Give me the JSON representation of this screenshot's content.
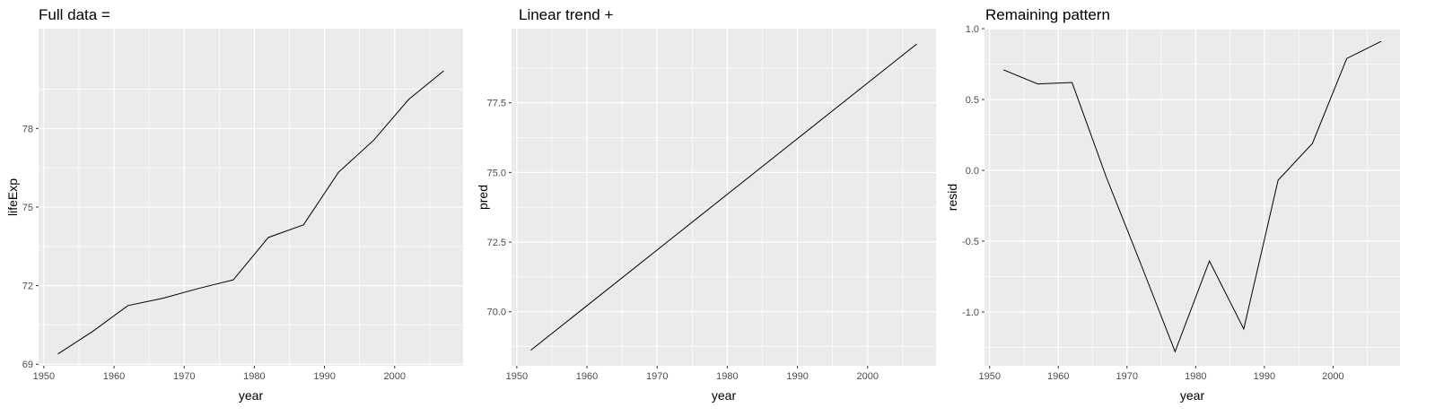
{
  "chart_data": [
    {
      "type": "line",
      "title": "Full data =",
      "xlabel": "year",
      "ylabel": "lifeExp",
      "xlim": [
        1949.25,
        2009.75
      ],
      "ylim": [
        68.94,
        81.81
      ],
      "xticks": [
        1950,
        1960,
        1970,
        1980,
        1990,
        2000
      ],
      "xtick_labels": [
        "1950",
        "1960",
        "1970",
        "1980",
        "1990",
        "2000"
      ],
      "yticks": [
        69,
        72,
        75,
        78
      ],
      "ytick_labels": [
        "69",
        "72",
        "75",
        "78"
      ],
      "grid": true,
      "series": [
        {
          "x": [
            1952,
            1957,
            1962,
            1967,
            1972,
            1977,
            1982,
            1987,
            1992,
            1997,
            2002,
            2007
          ],
          "y": [
            69.39,
            70.26,
            71.24,
            71.52,
            71.89,
            72.22,
            73.84,
            74.32,
            76.33,
            77.55,
            79.11,
            80.2
          ]
        }
      ]
    },
    {
      "type": "line",
      "title": "Linear trend +",
      "xlabel": "year",
      "ylabel": "pred",
      "xlim": [
        1949.25,
        2009.75
      ],
      "ylim": [
        68.06,
        80.16
      ],
      "xticks": [
        1950,
        1960,
        1970,
        1980,
        1990,
        2000
      ],
      "xtick_labels": [
        "1950",
        "1960",
        "1970",
        "1980",
        "1990",
        "2000"
      ],
      "yticks": [
        70.0,
        72.5,
        75.0,
        77.5
      ],
      "ytick_labels": [
        "70.0",
        "72.5",
        "75.0",
        "77.5"
      ],
      "grid": true,
      "series": [
        {
          "x": [
            1952,
            2007
          ],
          "y": [
            68.62,
            79.61
          ]
        }
      ]
    },
    {
      "type": "line",
      "title": "Remaining pattern",
      "xlabel": "year",
      "ylabel": "resid",
      "xlim": [
        1949.25,
        2009.75
      ],
      "ylim": [
        -1.38,
        1.0
      ],
      "xticks": [
        1950,
        1960,
        1970,
        1980,
        1990,
        2000
      ],
      "xtick_labels": [
        "1950",
        "1960",
        "1970",
        "1980",
        "1990",
        "2000"
      ],
      "yticks": [
        -1.0,
        -0.5,
        0.0,
        0.5,
        1.0
      ],
      "ytick_labels": [
        "-1.0",
        "-0.5",
        "0.0",
        "0.5",
        "1.0"
      ],
      "grid": true,
      "series": [
        {
          "x": [
            1952,
            1957,
            1962,
            1967,
            1972,
            1977,
            1982,
            1987,
            1992,
            1997,
            2002,
            2007
          ],
          "y": [
            0.71,
            0.61,
            0.62,
            -0.05,
            -0.66,
            -1.28,
            -0.64,
            -1.12,
            -0.07,
            0.19,
            0.79,
            0.91
          ]
        }
      ]
    }
  ],
  "style": {
    "panel_bg": "#ebebeb",
    "grid_major": "#ffffff",
    "line_color": "#000000",
    "tick_color": "#333333"
  }
}
